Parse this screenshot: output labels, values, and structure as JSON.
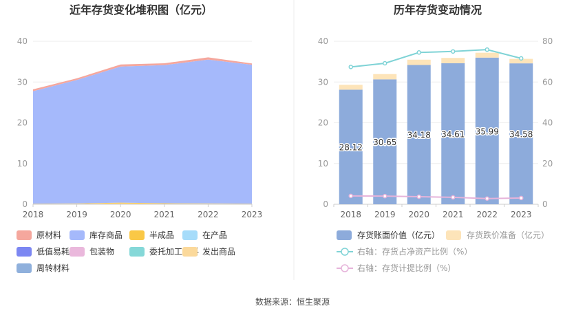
{
  "source_label": "数据来源：恒生聚源",
  "chart_data": [
    {
      "type": "area",
      "title": "近年存货变化堆积图（亿元）",
      "x": [
        "2018",
        "2019",
        "2020",
        "2021",
        "2022",
        "2023"
      ],
      "ylim": [
        0,
        40
      ],
      "yticks": [
        0,
        10,
        20,
        30,
        40
      ],
      "legend_position": "bottom",
      "series": [
        {
          "name": "周转材料",
          "color": "#8fb0dc",
          "values": [
            0.05,
            0.05,
            0.05,
            0.05,
            0.05,
            0.05
          ]
        },
        {
          "name": "发出商品",
          "color": "#fbd99b",
          "values": [
            0.05,
            0.1,
            0.15,
            0.1,
            0.1,
            0.05
          ]
        },
        {
          "name": "委托加工材料",
          "color": "#85d8d8",
          "values": [
            0,
            0,
            0,
            0,
            0,
            0
          ]
        },
        {
          "name": "包装物",
          "color": "#eab8dc",
          "values": [
            0,
            0,
            0,
            0,
            0,
            0
          ]
        },
        {
          "name": "低值易耗品",
          "color": "#7c87f2",
          "values": [
            0,
            0,
            0,
            0,
            0,
            0
          ]
        },
        {
          "name": "在产品",
          "color": "#a6dcfa",
          "values": [
            0,
            0,
            0,
            0,
            0,
            0
          ]
        },
        {
          "name": "半成品",
          "color": "#fac846",
          "values": [
            0.05,
            0.05,
            0.2,
            0.1,
            0.05,
            0.05
          ]
        },
        {
          "name": "库存商品",
          "color": "#a5b9fb",
          "values": [
            27.6,
            30.3,
            33.4,
            33.9,
            35.3,
            34.1
          ]
        },
        {
          "name": "原材料",
          "color": "#f5a79d",
          "values": [
            0.45,
            0.4,
            0.5,
            0.45,
            0.55,
            0.3
          ]
        }
      ],
      "legend_order": [
        "原材料",
        "库存商品",
        "半成品",
        "在产品",
        "低值易耗品",
        "包装物",
        "委托加工材料",
        "发出商品",
        "周转材料"
      ]
    },
    {
      "type": "bar",
      "title": "历年存货变动情况",
      "categories": [
        "2018",
        "2019",
        "2020",
        "2021",
        "2022",
        "2023"
      ],
      "ylim": [
        0,
        40
      ],
      "yticks": [
        0,
        10,
        20,
        30,
        40
      ],
      "y2lim": [
        0,
        80
      ],
      "y2ticks": [
        0,
        20,
        40,
        60,
        80
      ],
      "legend_position": "bottom",
      "series": [
        {
          "name": "存货账面价值（亿元）",
          "kind": "bar",
          "axis": "left",
          "color": "#8dabdb",
          "values": [
            28.12,
            30.65,
            34.18,
            34.61,
            35.99,
            34.58
          ],
          "labels": [
            "28.12",
            "30.65",
            "34.18",
            "34.61",
            "35.99",
            "34.58"
          ]
        },
        {
          "name": "存货跌价准备（亿元）",
          "kind": "bar",
          "axis": "left",
          "color": "#fde4b9",
          "values": [
            1.2,
            1.3,
            1.3,
            1.3,
            1.2,
            1.1
          ]
        },
        {
          "name": "右轴：存货占净资产比例（%）",
          "kind": "line",
          "axis": "right",
          "color": "#7fd3d6",
          "values": [
            67.4,
            69.2,
            74.5,
            75.0,
            75.9,
            71.6
          ]
        },
        {
          "name": "右轴：存货计提比例（%）",
          "kind": "line",
          "axis": "right",
          "color": "#e6b3da",
          "values": [
            4.1,
            4.0,
            3.7,
            3.4,
            2.8,
            3.1
          ]
        }
      ]
    }
  ]
}
